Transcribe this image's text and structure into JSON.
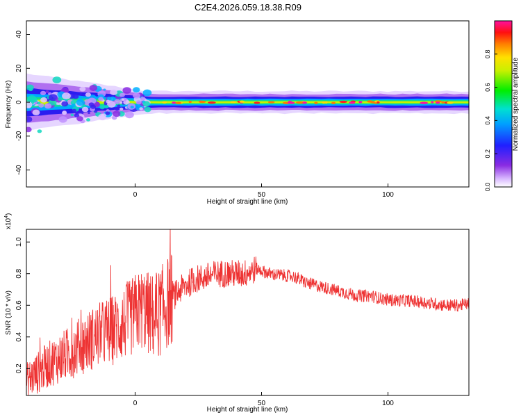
{
  "title": "C2E4.2026.059.18.38.R09",
  "chart_data": [
    {
      "type": "heatmap",
      "xlabel": "Height of straight line (km)",
      "ylabel": "Frequency (Hz)",
      "xlim": [
        -43,
        132
      ],
      "ylim": [
        -50,
        48
      ],
      "xticks": [
        0,
        50,
        100
      ],
      "yticks": [
        -40,
        -20,
        0,
        20,
        40
      ],
      "colorbar": {
        "label": "Normalized spectral amplitude",
        "range": [
          0,
          1
        ],
        "ticks": [
          0.0,
          0.2,
          0.4,
          0.6,
          0.8
        ],
        "colormap": "rainbow: white-purple-blue-cyan-green-yellow-orange-red-magenta"
      },
      "description_points": {
        "center_frequency_hz": 0,
        "band_halfwidth_hz_at_left": 6,
        "band_halfwidth_hz_at_right": 4,
        "scatter_spread_end_km": 5
      }
    },
    {
      "type": "line",
      "xlabel": "Height of straight line (km)",
      "ylabel": "SNR (10 * v/v)",
      "multiplier": "(x10^4)",
      "multiplier_base": "x10",
      "multiplier_exp": "4",
      "multiplier_close": ")",
      "xlim": [
        -43,
        132
      ],
      "ylim": [
        0.03,
        1.08
      ],
      "xticks": [
        0,
        50,
        100
      ],
      "yticks": [
        0.2,
        0.4,
        0.6,
        0.8,
        1.0
      ],
      "color": "#ee3333",
      "series": [
        {
          "x": [
            -43,
            -38,
            -33,
            -28,
            -23,
            -18,
            -13,
            -8,
            -3,
            0,
            3,
            5,
            8,
            13,
            18,
            23,
            28,
            33,
            38,
            43,
            48,
            53,
            58,
            63,
            68,
            73,
            78,
            83,
            88,
            93,
            98,
            103,
            108,
            113,
            118,
            123,
            128,
            132
          ],
          "y": [
            0.12,
            0.18,
            0.24,
            0.28,
            0.33,
            0.38,
            0.42,
            0.45,
            0.5,
            0.55,
            0.58,
            0.55,
            0.52,
            0.62,
            0.7,
            0.76,
            0.78,
            0.8,
            0.8,
            0.8,
            0.83,
            0.8,
            0.79,
            0.78,
            0.74,
            0.72,
            0.7,
            0.68,
            0.66,
            0.66,
            0.64,
            0.63,
            0.63,
            0.62,
            0.61,
            0.6,
            0.6,
            0.61
          ]
        }
      ]
    }
  ]
}
